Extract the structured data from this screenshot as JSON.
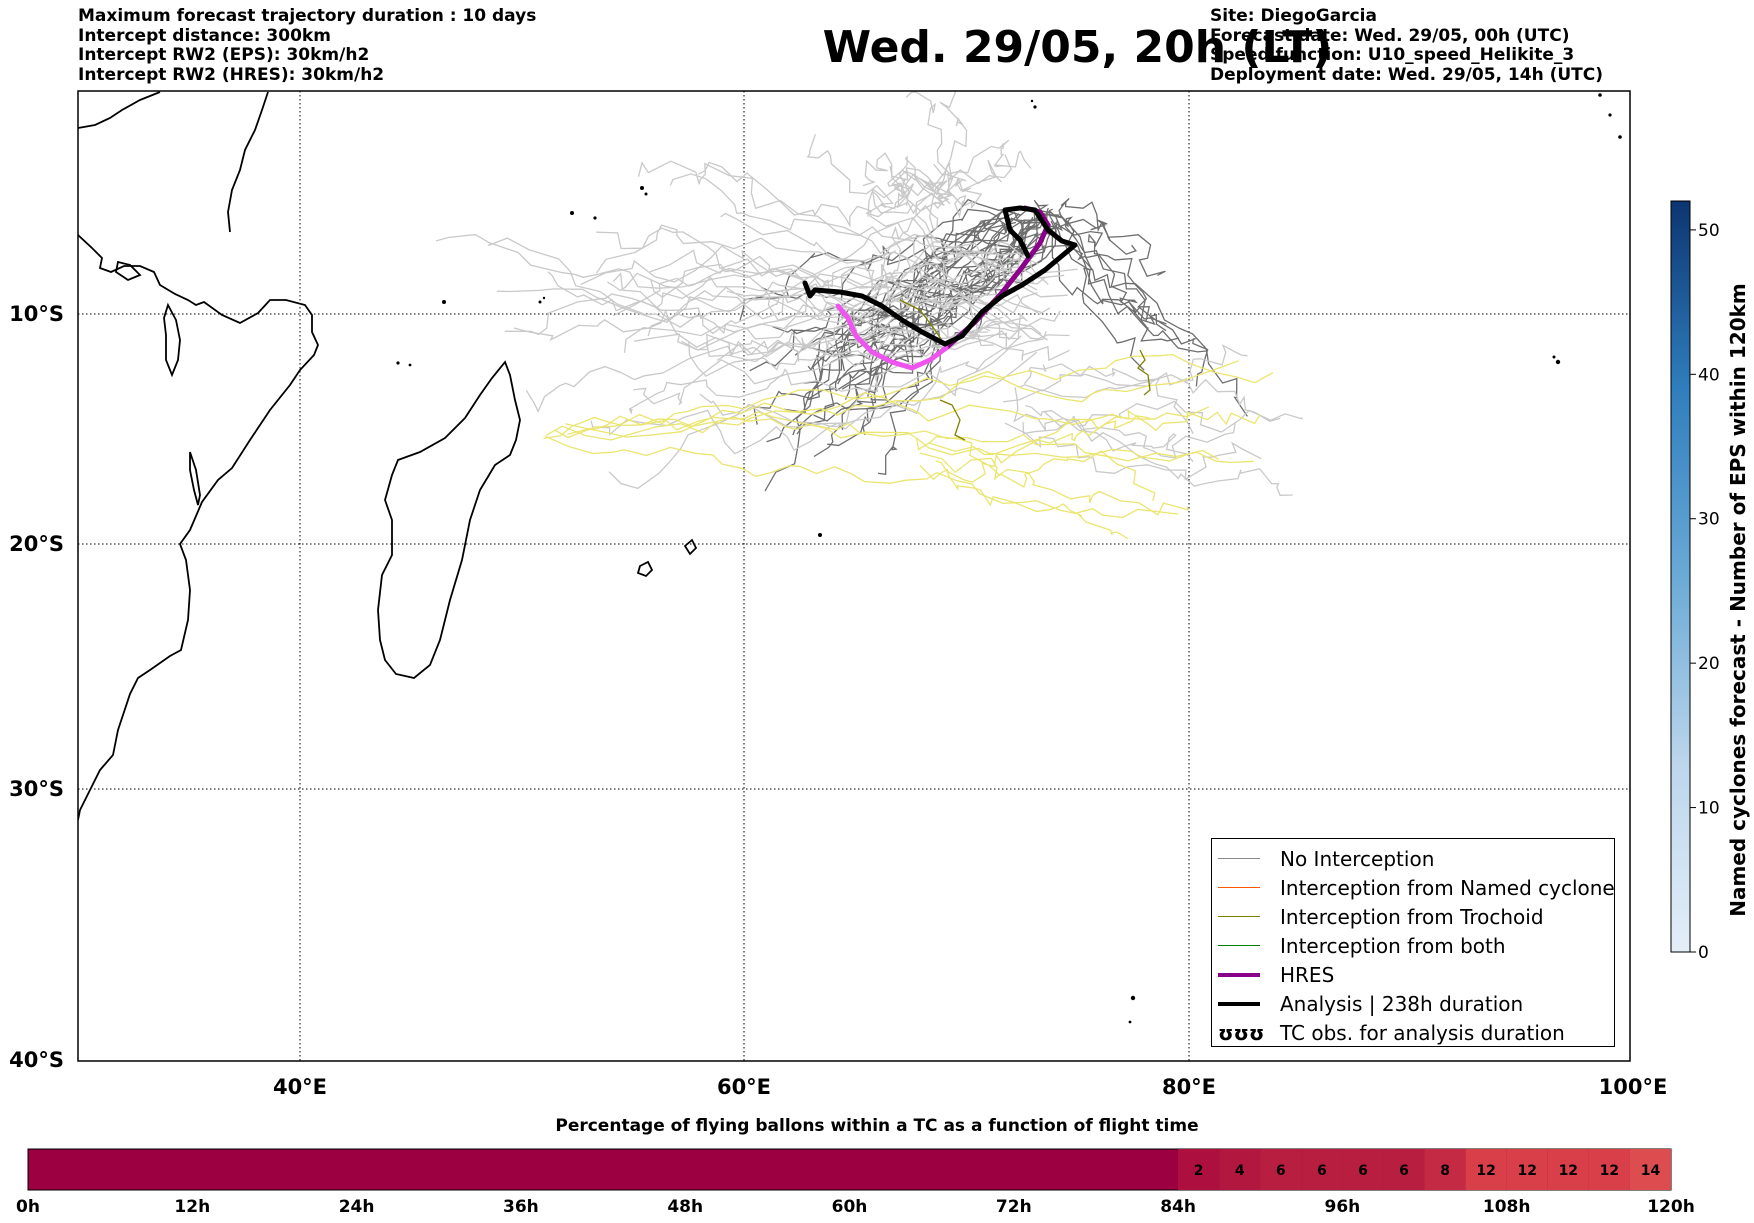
{
  "header": {
    "left": [
      "Maximum forecast trajectory duration : 10 days",
      "Intercept distance: 300km",
      "Intercept RW2 (EPS):  30km/h2",
      "Intercept RW2 (HRES): 30km/h2"
    ],
    "title": "Wed. 29/05, 20h (LT)",
    "right": [
      "Site: DiegoGarcia",
      "Forecast date: Wed. 29/05, 00h (UTC)",
      "Speed function: U10_speed_Helikite_3",
      "Deployment date: Wed. 29/05, 14h (UTC)"
    ]
  },
  "map": {
    "lon_range": [
      30,
      100
    ],
    "lat_range": [
      -40,
      0
    ],
    "lon_ticks": [
      "40°E",
      "60°E",
      "80°E",
      "100°E"
    ],
    "lat_ticks": [
      "10°S",
      "20°S",
      "30°S",
      "40°S"
    ]
  },
  "legend": {
    "items": [
      {
        "label": "No Interception",
        "color": "#888888"
      },
      {
        "label": "Interception from Named cyclone",
        "color": "#ff5500"
      },
      {
        "label": "Interception from Trochoid",
        "color": "#808000"
      },
      {
        "label": "Interception from both",
        "color": "#008000"
      },
      {
        "label": "HRES",
        "color": "#8b008b"
      },
      {
        "label": "Analysis | 238h duration",
        "color": "#000000"
      }
    ],
    "tc_glyph": "ʊʊʊ",
    "tc_label": "TC obs. for analysis duration"
  },
  "colorbar": {
    "label": "Named cyclones forecast - Number of EPS within 120km",
    "ticks": [
      "0",
      "10",
      "20",
      "30",
      "40",
      "50"
    ],
    "range": [
      0,
      52
    ]
  },
  "timebar": {
    "title": "Percentage of flying ballons within a TC as a function of flight time",
    "ticks": [
      "0h",
      "12h",
      "24h",
      "36h",
      "48h",
      "60h",
      "72h",
      "84h",
      "96h",
      "108h",
      "120h"
    ],
    "cells": [
      "2",
      "4",
      "6",
      "6",
      "6",
      "6",
      "8",
      "12",
      "12",
      "12",
      "12",
      "14"
    ]
  }
}
